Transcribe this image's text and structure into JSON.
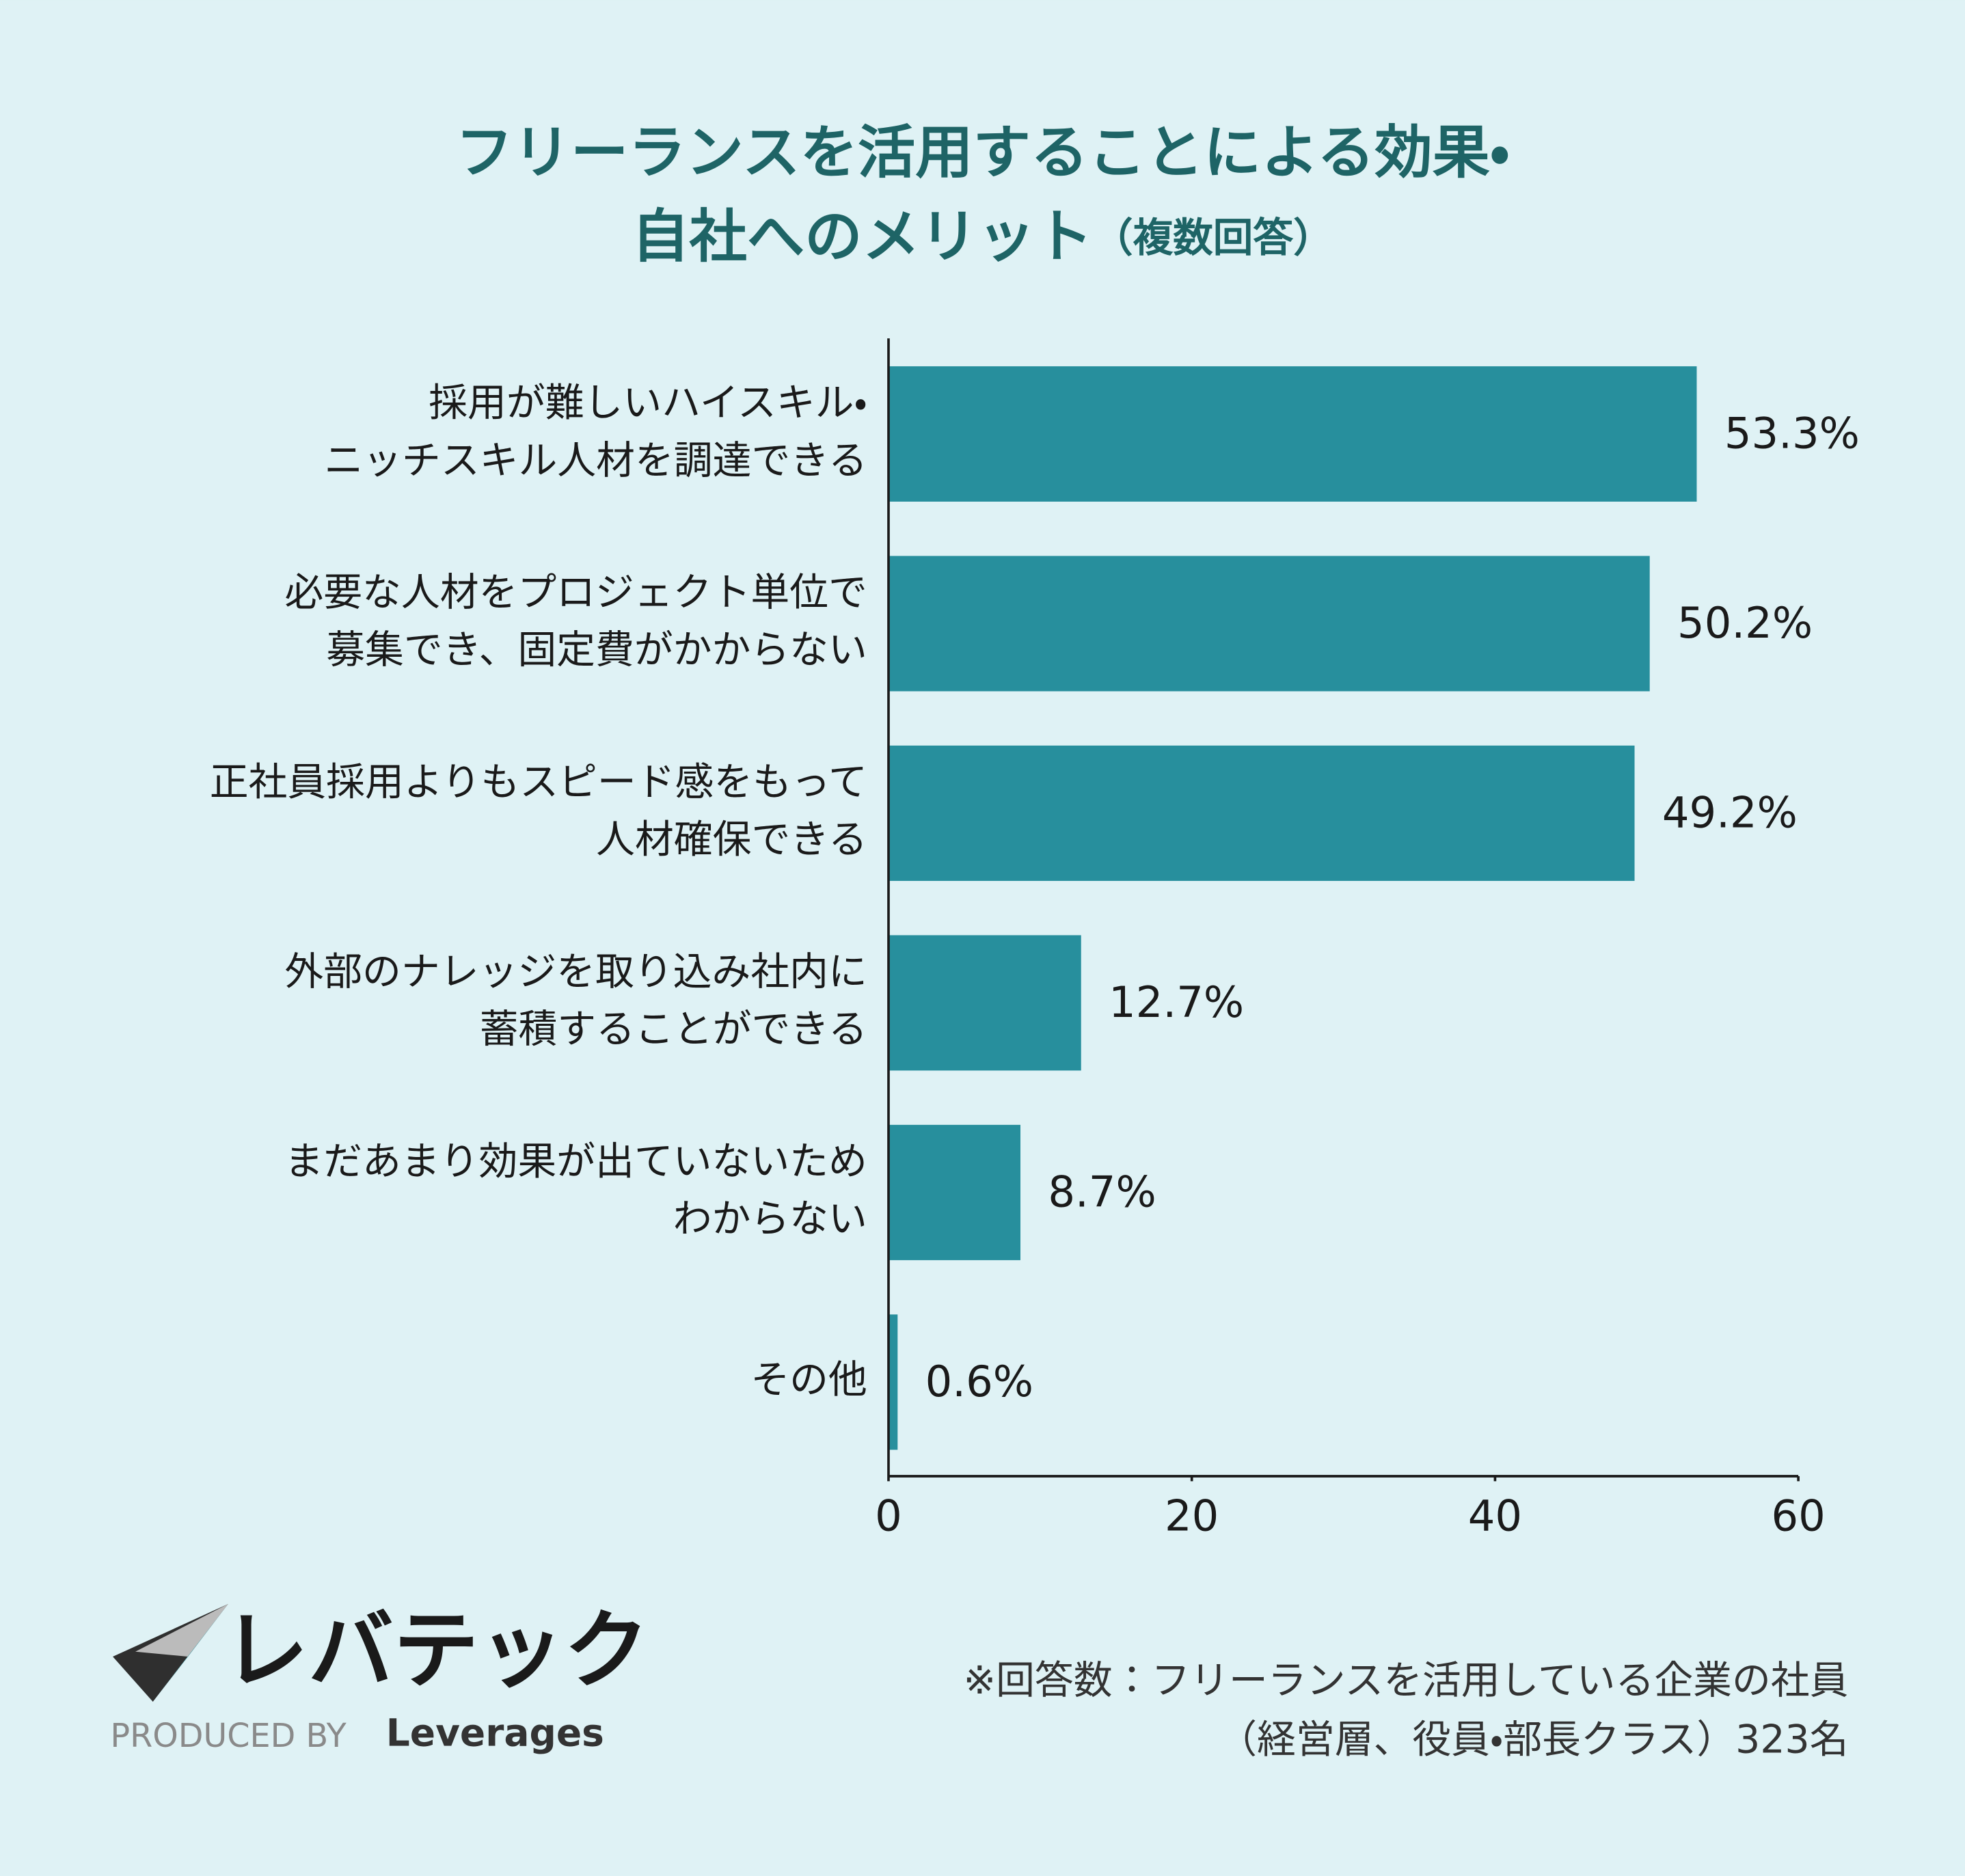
{
  "chart_data": {
    "type": "bar",
    "orientation": "horizontal",
    "title": [
      "フリーランスを活用することによる効果・",
      "自社へのメリット"
    ],
    "subtitle": "（複数回答）",
    "categories": [
      [
        "採用が難しいハイスキル・",
        "ニッチスキル人材を調達できる"
      ],
      [
        "必要な人材をプロジェクト単位で",
        "募集でき、固定費がかからない"
      ],
      [
        "正社員採用よりもスピード感をもって",
        "人材確保できる"
      ],
      [
        "外部のナレッジを取り込み社内に",
        "蓄積することができる"
      ],
      [
        "まだあまり効果が出ていないため",
        "わからない"
      ],
      [
        "その他"
      ]
    ],
    "values": [
      53.3,
      50.2,
      49.2,
      12.7,
      8.7,
      0.6
    ],
    "value_labels": [
      "53.3%",
      "50.2%",
      "49.2%",
      "12.7%",
      "8.7%",
      "0.6%"
    ],
    "color": "#278f9d",
    "xlim": [
      0,
      60
    ],
    "xticks": [
      0,
      20,
      40,
      60
    ],
    "grid": false,
    "footnote": [
      "※回答数：フリーランスを活用している企業の社員",
      "（経営層、役員・部長クラス）323名"
    ],
    "logo": {
      "name": "レバテック",
      "produced_by": "PRODUCED BY",
      "company": "Leverages"
    }
  }
}
